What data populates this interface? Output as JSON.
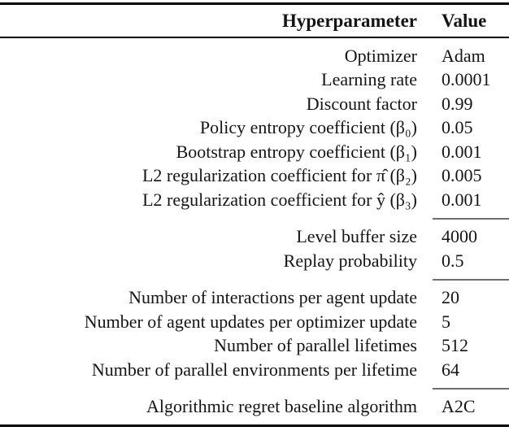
{
  "table": {
    "header": {
      "param_label": "Hyperparameter",
      "value_label": "Value"
    },
    "style": {
      "heavy_rule_color": "#000000",
      "section_rule_color": "#6e6e6e",
      "text_color": "#141414",
      "background": "#ffffff"
    },
    "sections": [
      {
        "rows": [
          {
            "param": "Optimizer",
            "value": "Adam"
          },
          {
            "param": "Learning rate",
            "value": "0.0001"
          },
          {
            "param": "Discount factor",
            "value": "0.99"
          },
          {
            "param": "Policy entropy coefficient (β₀)",
            "value": "0.05"
          },
          {
            "param": "Bootstrap entropy coefficient (β₁)",
            "value": "0.001"
          },
          {
            "param": "L2 regularization coefficient for π̂ (β₂)",
            "value": "0.005"
          },
          {
            "param": "L2 regularization coefficient for ŷ (β₃)",
            "value": "0.001"
          }
        ]
      },
      {
        "rows": [
          {
            "param": "Level buffer size",
            "value": "4000"
          },
          {
            "param": "Replay probability",
            "value": "0.5"
          }
        ]
      },
      {
        "rows": [
          {
            "param": "Number of interactions per agent update",
            "value": "20"
          },
          {
            "param": "Number of agent updates per optimizer update",
            "value": "5"
          },
          {
            "param": "Number of parallel lifetimes",
            "value": "512"
          },
          {
            "param": "Number of parallel environments per lifetime",
            "value": "64"
          }
        ]
      },
      {
        "rows": [
          {
            "param": "Algorithmic regret baseline algorithm",
            "value": "A2C"
          }
        ]
      }
    ]
  }
}
